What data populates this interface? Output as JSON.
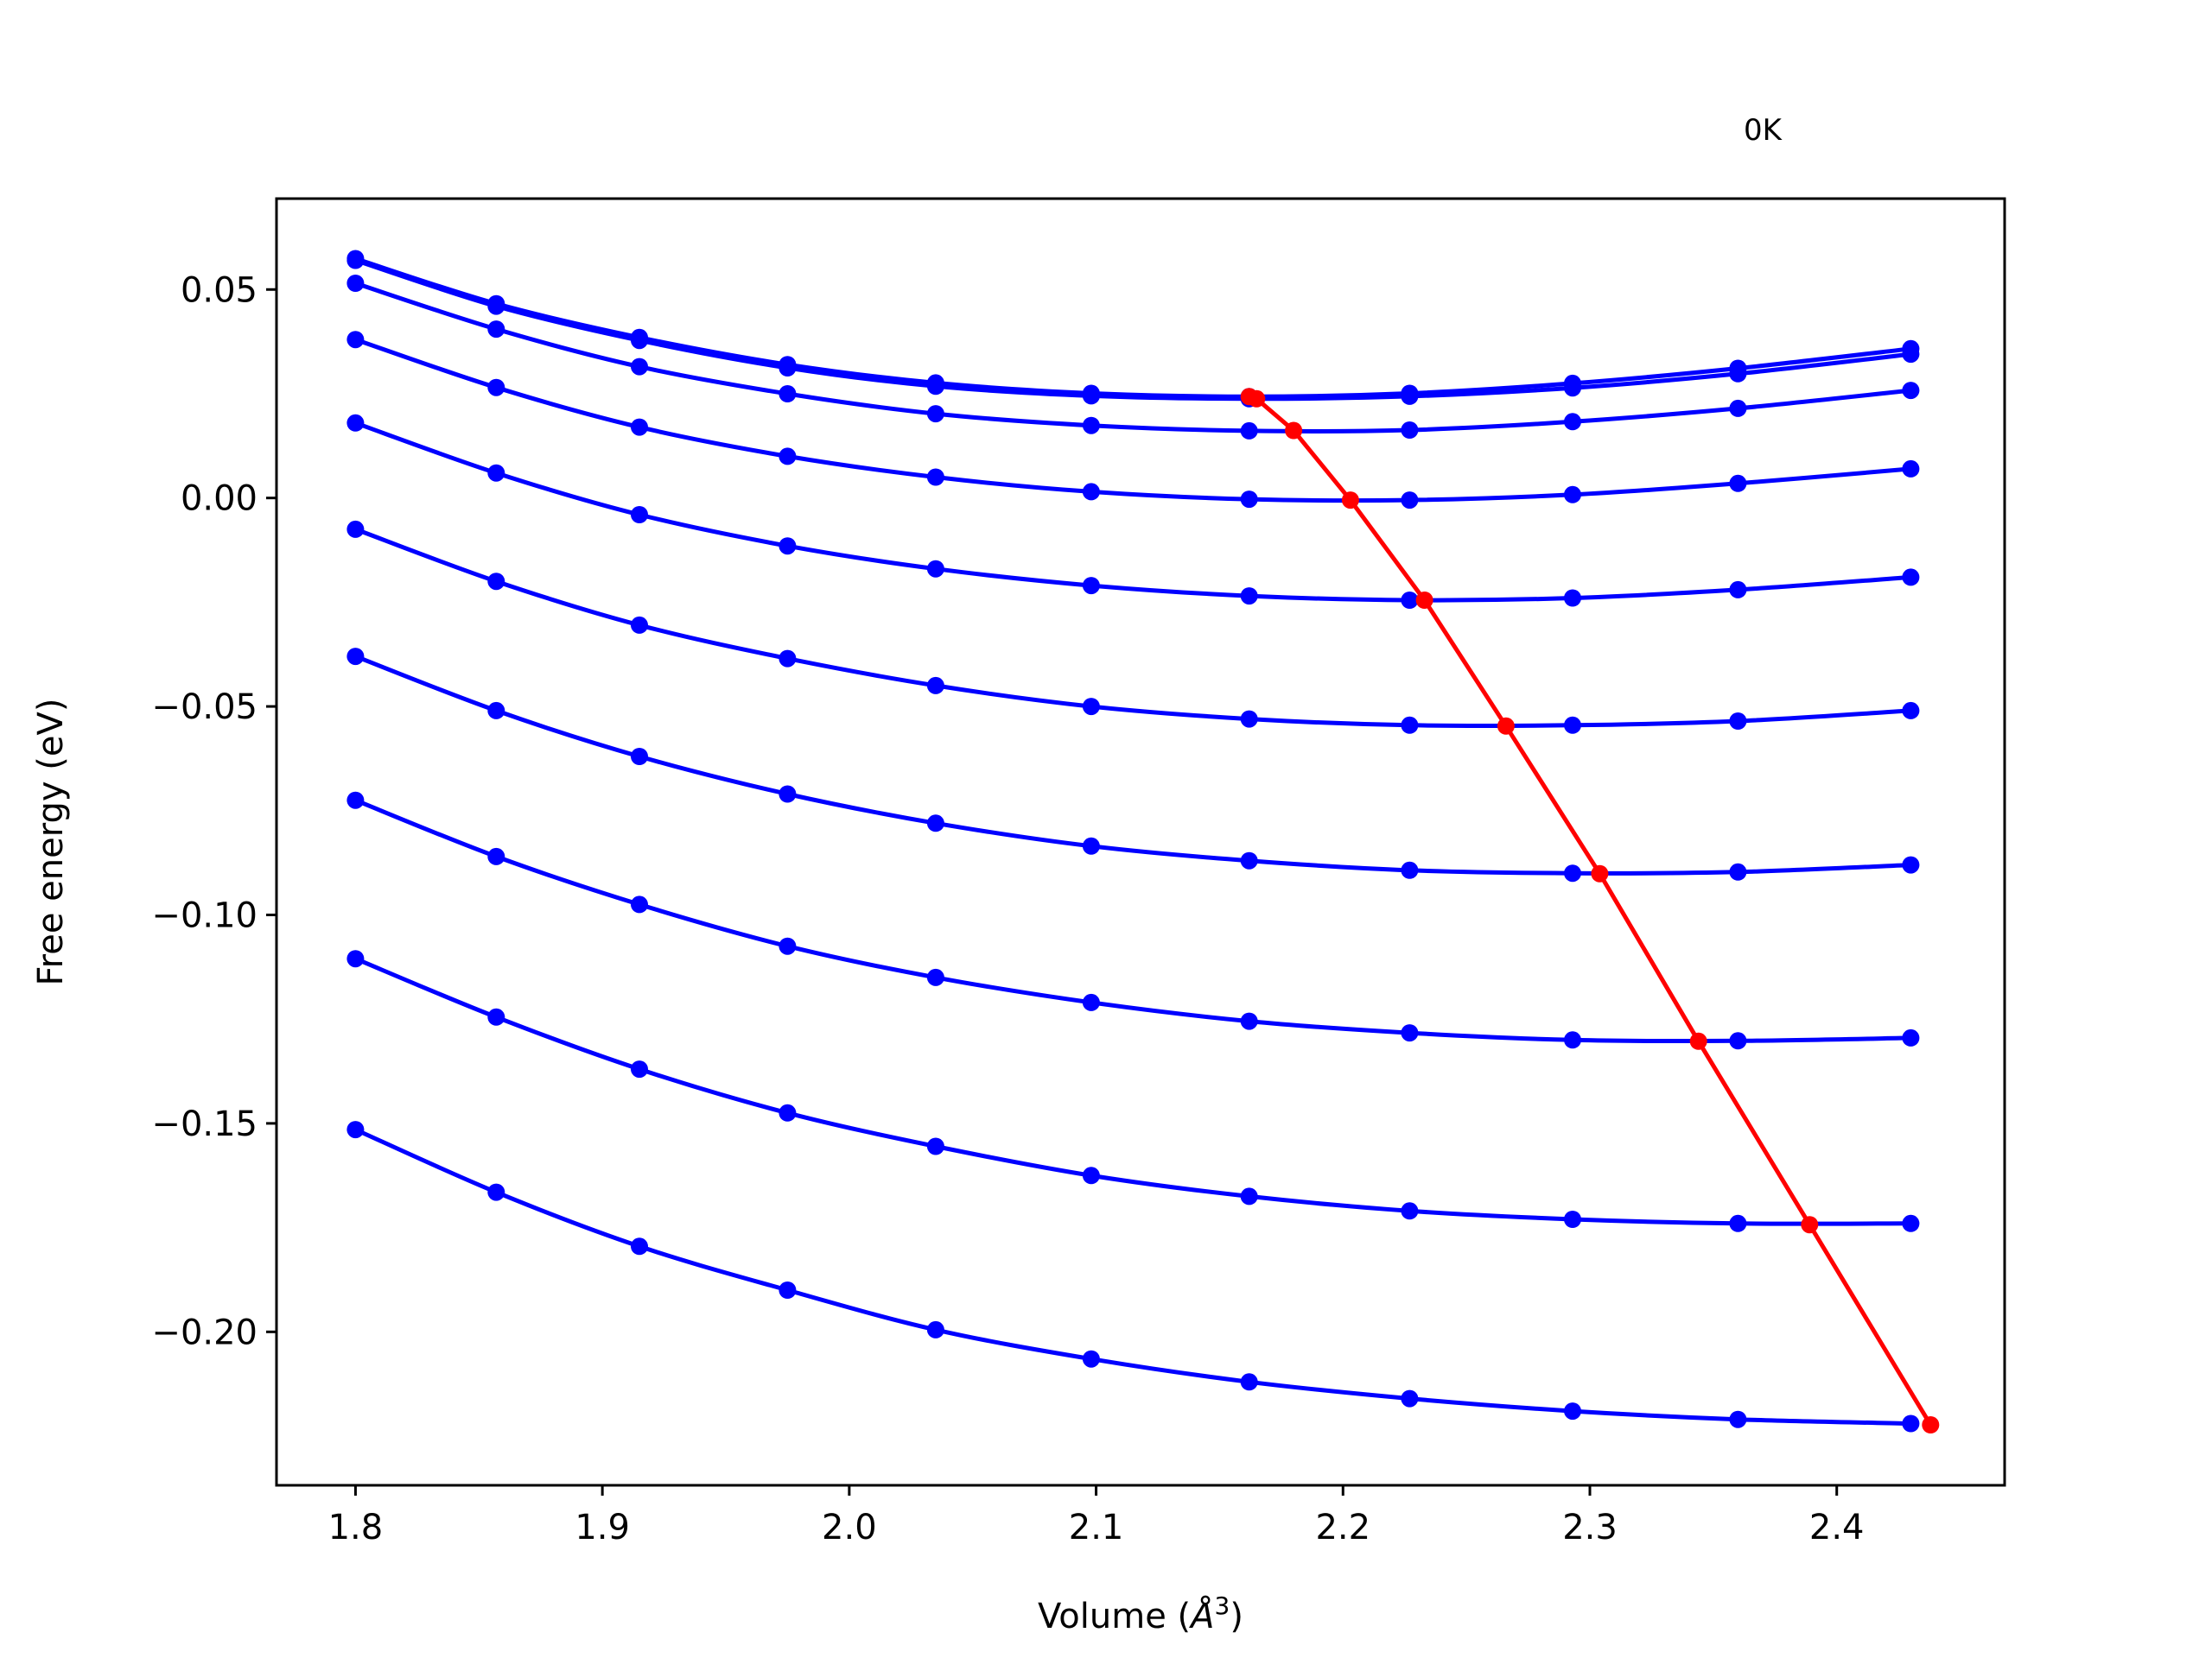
{
  "chart_data": {
    "type": "line",
    "title": "",
    "annotation": "0K",
    "xlabel": "Volume (",
    "xlabel_unit_symbol": "Å",
    "xlabel_unit_power": "3",
    "xlabel_close": ")",
    "ylabel": "Free energy (eV)",
    "xlim": [
      1.768,
      2.468
    ],
    "ylim": [
      -0.2368,
      0.0718
    ],
    "xticks": [
      1.8,
      1.9,
      2.0,
      2.1,
      2.2,
      2.3,
      2.4
    ],
    "xtick_labels": [
      "1.8",
      "1.9",
      "2.0",
      "2.1",
      "2.2",
      "2.3",
      "2.4"
    ],
    "yticks": [
      0.05,
      0.0,
      -0.05,
      -0.1,
      -0.15,
      -0.2
    ],
    "ytick_labels": [
      "0.05",
      "0.00",
      "−0.05",
      "−0.10",
      "−0.15",
      "−0.20"
    ],
    "grid": false,
    "colors": {
      "curves": "#0000ff",
      "minima": "#ff0000",
      "axes": "#000000"
    },
    "x": [
      1.8,
      1.857,
      1.915,
      1.975,
      2.035,
      2.098,
      2.162,
      2.227,
      2.293,
      2.36,
      2.43
    ],
    "series": [
      {
        "values": [
          0.0574,
          0.0466,
          0.0385,
          0.032,
          0.0276,
          0.0251,
          0.0243,
          0.0251,
          0.0275,
          0.0311,
          0.0358
        ]
      },
      {
        "values": [
          0.057,
          0.046,
          0.0378,
          0.0312,
          0.0268,
          0.0245,
          0.0238,
          0.0244,
          0.0264,
          0.0298,
          0.0345
        ]
      },
      {
        "values": [
          0.0515,
          0.0405,
          0.0315,
          0.025,
          0.0202,
          0.0174,
          0.0161,
          0.0163,
          0.0183,
          0.0215,
          0.0258
        ]
      },
      {
        "values": [
          0.038,
          0.0265,
          0.017,
          0.01,
          0.005,
          0.0015,
          -0.0003,
          -0.0005,
          0.0008,
          0.0035,
          0.007
        ]
      },
      {
        "values": [
          0.018,
          0.006,
          -0.004,
          -0.0115,
          -0.017,
          -0.021,
          -0.0235,
          -0.0245,
          -0.024,
          -0.022,
          -0.019
        ]
      },
      {
        "values": [
          -0.0075,
          -0.02,
          -0.0305,
          -0.0385,
          -0.045,
          -0.05,
          -0.053,
          -0.0545,
          -0.0545,
          -0.0535,
          -0.051
        ]
      },
      {
        "values": [
          -0.038,
          -0.051,
          -0.062,
          -0.071,
          -0.078,
          -0.0835,
          -0.087,
          -0.0893,
          -0.09,
          -0.0897,
          -0.088
        ]
      },
      {
        "values": [
          -0.0725,
          -0.086,
          -0.0975,
          -0.1075,
          -0.115,
          -0.121,
          -0.1255,
          -0.1283,
          -0.13,
          -0.1302,
          -0.1295
        ]
      },
      {
        "values": [
          -0.1105,
          -0.1245,
          -0.137,
          -0.1475,
          -0.1555,
          -0.1625,
          -0.1675,
          -0.171,
          -0.173,
          -0.174,
          -0.174
        ]
      },
      {
        "values": [
          -0.1515,
          -0.1665,
          -0.1795,
          -0.19,
          -0.1995,
          -0.2065,
          -0.212,
          -0.216,
          -0.219,
          -0.221,
          -0.222
        ]
      }
    ],
    "minima": {
      "x": [
        2.162,
        2.165,
        2.18,
        2.203,
        2.233,
        2.266,
        2.304,
        2.344,
        2.389,
        2.438
      ],
      "y": [
        0.0243,
        0.0238,
        0.0162,
        -0.0005,
        -0.0245,
        -0.0547,
        -0.0901,
        -0.1303,
        -0.1743,
        -0.2223
      ]
    }
  }
}
